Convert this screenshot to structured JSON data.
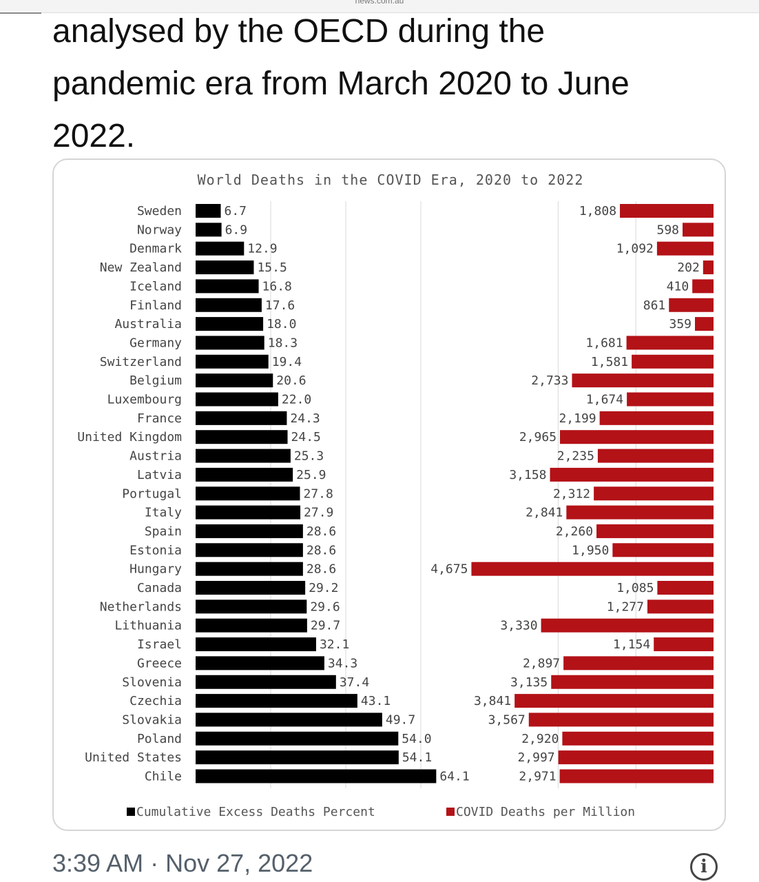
{
  "site": "news.com.au",
  "tweet": {
    "line1": "analysed by the OECD during the",
    "line2": "pandemic era from March 2020 to June",
    "line3": "2022.",
    "timestamp": "3:39 AM · Nov 27, 2022"
  },
  "icons": {
    "info": "info-icon",
    "info_glyph": "i"
  },
  "colors": {
    "left_bar": "#000000",
    "right_bar": "#b31217",
    "grid": "#d8d8d8",
    "text": "#444444"
  },
  "chart_data": {
    "type": "bar",
    "title": "World Deaths in the COVID Era, 2020 to 2022",
    "orientation": "horizontal",
    "categories": [
      "Sweden",
      "Norway",
      "Denmark",
      "New Zealand",
      "Iceland",
      "Finland",
      "Australia",
      "Germany",
      "Switzerland",
      "Belgium",
      "Luxembourg",
      "France",
      "United Kingdom",
      "Austria",
      "Latvia",
      "Portugal",
      "Italy",
      "Spain",
      "Estonia",
      "Hungary",
      "Canada",
      "Netherlands",
      "Lithuania",
      "Israel",
      "Greece",
      "Slovenia",
      "Czechia",
      "Slovakia",
      "Poland",
      "United States",
      "Chile"
    ],
    "series": [
      {
        "name": "Cumulative Excess Deaths Percent",
        "values": [
          6.7,
          6.9,
          12.9,
          15.5,
          16.8,
          17.6,
          18.0,
          18.3,
          19.4,
          20.6,
          22.0,
          24.3,
          24.5,
          25.3,
          25.9,
          27.8,
          27.9,
          28.6,
          28.6,
          28.6,
          29.2,
          29.6,
          29.7,
          32.1,
          34.3,
          37.4,
          43.1,
          49.7,
          54.0,
          54.1,
          64.1
        ],
        "labels": [
          "6.7",
          "6.9",
          "12.9",
          "15.5",
          "16.8",
          "17.6",
          "18.0",
          "18.3",
          "19.4",
          "20.6",
          "22.0",
          "24.3",
          "24.5",
          "25.3",
          "25.9",
          "27.8",
          "27.9",
          "28.6",
          "28.6",
          "28.6",
          "29.2",
          "29.6",
          "29.7",
          "32.1",
          "34.3",
          "37.4",
          "43.1",
          "49.7",
          "54.0",
          "54.1",
          "64.1"
        ]
      },
      {
        "name": "COVID Deaths per Million",
        "direction": "right-to-left",
        "values": [
          1808,
          598,
          1092,
          202,
          410,
          861,
          359,
          1681,
          1581,
          2733,
          1674,
          2199,
          2965,
          2235,
          3158,
          2312,
          2841,
          2260,
          1950,
          4675,
          1085,
          1277,
          3330,
          1154,
          2897,
          3135,
          3841,
          3567,
          2920,
          2997,
          2971
        ],
        "labels": [
          "1,808",
          "598",
          "1,092",
          "202",
          "410",
          "861",
          "359",
          "1,681",
          "1,581",
          "2,733",
          "1,674",
          "2,199",
          "2,965",
          "2,235",
          "3,158",
          "2,312",
          "2,841",
          "2,260",
          "1,950",
          "4,675",
          "1,085",
          "1,277",
          "3,330",
          "1,154",
          "2,897",
          "3,135",
          "3,841",
          "3,567",
          "2,920",
          "2,997",
          "2,971"
        ]
      }
    ],
    "legend_position": "bottom",
    "grid": true
  }
}
